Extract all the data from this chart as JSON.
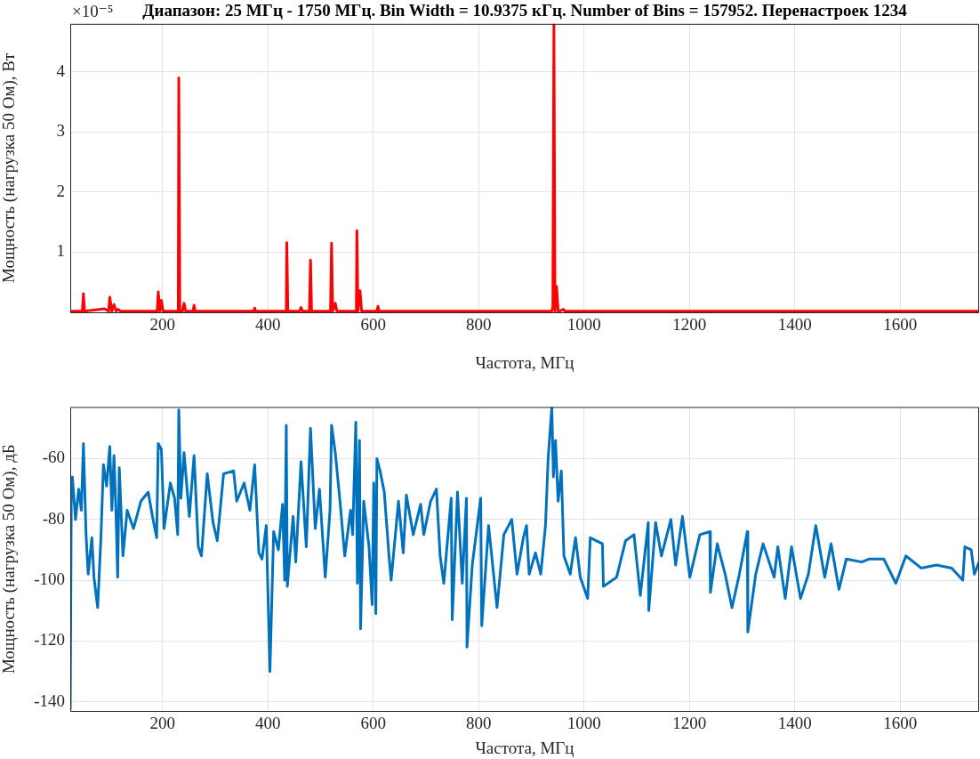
{
  "chart_data": [
    {
      "type": "line",
      "title": "Диапазон: 25 МГц - 1750 МГц. Bin Width = 10.9375 кГц. Number of Bins = 157952. Перенастроек 1234",
      "xlabel": "Частота, МГц",
      "ylabel": "Мощность (нагрузка 50 Ом), Вт",
      "annotations": [
        "×10⁻⁵"
      ],
      "xlim": [
        25,
        1750
      ],
      "xticks": [
        200,
        400,
        600,
        800,
        1000,
        1200,
        1400,
        1600
      ],
      "ylim": [
        0,
        4.8
      ],
      "yticks": [
        1,
        2,
        3,
        4
      ],
      "grid": true,
      "legend": false,
      "series": [
        {
          "color": "#ff0000",
          "x": [
            25,
            40,
            48,
            50,
            52,
            90,
            98,
            100,
            104,
            108,
            112,
            116,
            120,
            185,
            190,
            192,
            195,
            198,
            201,
            228,
            230,
            231,
            233,
            238,
            241,
            244,
            258,
            260,
            262,
            373,
            375,
            377,
            433,
            435,
            436,
            438,
            460,
            463,
            466,
            479,
            481,
            483,
            519,
            521,
            523,
            528,
            531,
            566,
            568,
            569,
            571,
            575,
            578,
            607,
            609,
            611,
            939,
            941,
            943,
            945,
            948,
            951,
            954,
            961,
            964,
            1750
          ],
          "values": [
            0.02,
            0.02,
            0.02,
            0.31,
            0.02,
            0.06,
            0.02,
            0.25,
            0.02,
            0.13,
            0.02,
            0.05,
            0.02,
            0.02,
            0.02,
            0.34,
            0.02,
            0.2,
            0.02,
            0.02,
            0.02,
            3.9,
            0.02,
            0.02,
            0.15,
            0.02,
            0.02,
            0.12,
            0.02,
            0.02,
            0.07,
            0.02,
            0.02,
            0.02,
            1.16,
            0.02,
            0.02,
            0.08,
            0.02,
            0.02,
            0.87,
            0.02,
            0.02,
            1.15,
            0.02,
            0.15,
            0.02,
            0.02,
            0.02,
            1.36,
            0.02,
            0.36,
            0.02,
            0.02,
            0.1,
            0.02,
            0.02,
            0.1,
            4.8,
            0.02,
            0.43,
            0.02,
            0.02,
            0.05,
            0.02,
            0.02
          ]
        }
      ]
    },
    {
      "type": "line",
      "xlabel": "Частота, МГц",
      "ylabel": "Мощность (нагрузка 50 Ом), дБ",
      "xlim": [
        25,
        1750
      ],
      "xticks": [
        200,
        400,
        600,
        800,
        1000,
        1200,
        1400,
        1600
      ],
      "ylim": [
        -143,
        -43
      ],
      "yticks": [
        -140,
        -120,
        -100,
        -80,
        -60
      ],
      "grid": true,
      "legend": false,
      "series": [
        {
          "color": "#0072bd",
          "x": [
            25,
            27,
            29,
            35,
            41,
            46,
            50,
            55,
            59,
            66,
            70,
            77,
            83,
            88,
            94,
            100,
            104,
            108,
            112,
            115,
            118,
            125,
            133,
            145,
            159,
            173,
            181,
            189,
            192,
            198,
            203,
            215,
            223,
            229,
            231,
            235,
            241,
            251,
            260,
            268,
            274,
            285,
            296,
            304,
            316,
            335,
            341,
            355,
            366,
            375,
            383,
            389,
            397,
            404,
            411,
            420,
            428,
            432,
            435,
            437,
            448,
            453,
            463,
            473,
            481,
            490,
            498,
            509,
            518,
            521,
            528,
            537,
            546,
            557,
            561,
            567,
            570,
            574,
            576,
            582,
            592,
            598,
            601,
            605,
            607,
            613,
            621,
            630,
            634,
            648,
            657,
            663,
            676,
            690,
            696,
            709,
            720,
            727,
            734,
            742,
            748,
            750,
            760,
            769,
            777,
            778,
            788,
            804,
            806,
            819,
            835,
            848,
            863,
            873,
            885,
            891,
            896,
            908,
            918,
            927,
            932,
            939,
            942,
            946,
            951,
            957,
            962,
            974,
            984,
            993,
            1007,
            1012,
            1035,
            1037,
            1062,
            1079,
            1095,
            1107,
            1122,
            1123,
            1136,
            1147,
            1165,
            1174,
            1187,
            1201,
            1220,
            1239,
            1240,
            1253,
            1268,
            1281,
            1295,
            1310,
            1311,
            1326,
            1340,
            1361,
            1368,
            1382,
            1394,
            1411,
            1426,
            1440,
            1457,
            1469,
            1484,
            1498,
            1527,
            1542,
            1569,
            1592,
            1611,
            1640,
            1669,
            1698,
            1719,
            1723,
            1735,
            1741,
            1750
          ],
          "values": [
            -142.6,
            -71,
            -66,
            -80,
            -70,
            -77,
            -55,
            -85,
            -98,
            -86,
            -99,
            -109,
            -87,
            -62,
            -69,
            -56,
            -77,
            -59,
            -79,
            -99,
            -63,
            -92,
            -77,
            -83,
            -74,
            -71,
            -79,
            -86,
            -55,
            -57,
            -83,
            -68,
            -73,
            -85,
            -44,
            -73,
            -58,
            -79,
            -59,
            -89,
            -92,
            -65,
            -81,
            -87,
            -65,
            -64,
            -74,
            -68,
            -77,
            -62,
            -91,
            -93,
            -82,
            -130,
            -84,
            -90,
            -75,
            -100,
            -49,
            -102,
            -79,
            -94,
            -61,
            -89,
            -50,
            -83,
            -70,
            -99,
            -77,
            -49,
            -58,
            -74,
            -92,
            -77,
            -85,
            -48,
            -101,
            -54,
            -116,
            -74,
            -89,
            -108,
            -68,
            -111,
            -60,
            -64,
            -71,
            -92,
            -100,
            -74,
            -91,
            -72,
            -85,
            -75,
            -85,
            -74,
            -70,
            -92,
            -101,
            -85,
            -73,
            -113,
            -71,
            -101,
            -73,
            -122,
            -95,
            -73,
            -115,
            -82,
            -109,
            -85,
            -80,
            -98,
            -86,
            -82,
            -98,
            -91,
            -98,
            -82,
            -60,
            -43,
            -66,
            -54,
            -74,
            -64,
            -92,
            -98,
            -86,
            -99,
            -106,
            -86,
            -88,
            -102,
            -99,
            -87,
            -85,
            -105,
            -81,
            -110,
            -81,
            -92,
            -80,
            -95,
            -79,
            -99,
            -85,
            -84,
            -104,
            -88,
            -98,
            -109,
            -98,
            -84,
            -117,
            -98,
            -88,
            -99,
            -89,
            -106,
            -89,
            -106,
            -98,
            -82,
            -99,
            -88,
            -103,
            -93,
            -94,
            -93,
            -93,
            -101,
            -92,
            -96,
            -95,
            -96,
            -100,
            -89,
            -90,
            -98,
            -94
          ]
        }
      ]
    }
  ]
}
